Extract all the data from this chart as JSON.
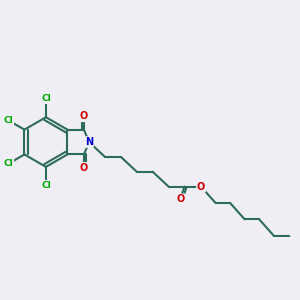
{
  "bg_color": "#eeeef4",
  "bond_color": "#2d6b5a",
  "bond_width": 1.5,
  "atom_colors": {
    "Cl": "#00aa00",
    "N": "#0000cc",
    "O": "#cc0000",
    "C": "#2d6b5a"
  }
}
